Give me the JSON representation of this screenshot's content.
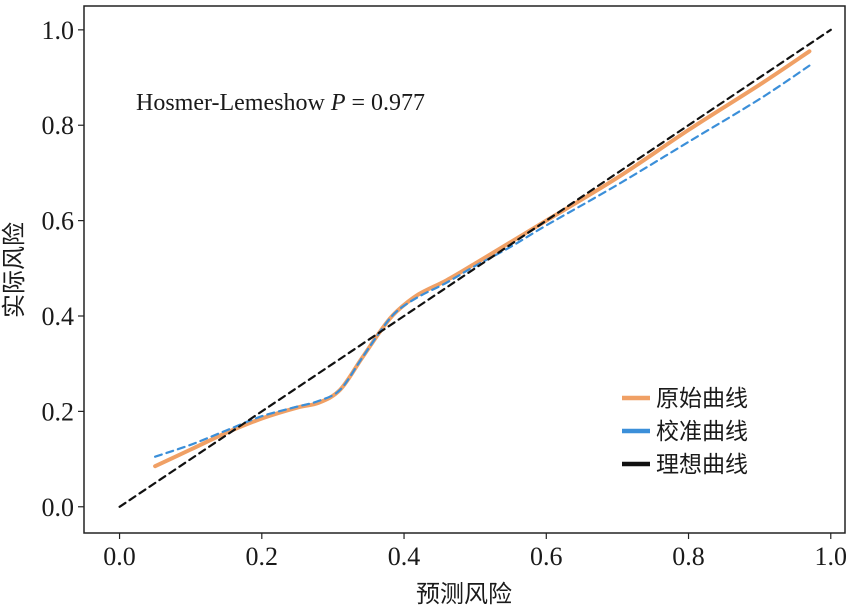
{
  "chart_data": {
    "type": "line",
    "xlabel": "预测风险",
    "ylabel": "实际风险",
    "xlim": [
      -0.05,
      1.02
    ],
    "ylim": [
      -0.055,
      1.05
    ],
    "xticks": [
      "0.0",
      "0.2",
      "0.4",
      "0.6",
      "0.8",
      "1.0"
    ],
    "yticks": [
      "0.0",
      "0.2",
      "0.4",
      "0.6",
      "0.8",
      "1.0"
    ],
    "xtick_values": [
      0,
      0.2,
      0.4,
      0.6,
      0.8,
      1.0
    ],
    "ytick_values": [
      0,
      0.2,
      0.4,
      0.6,
      0.8,
      1.0
    ],
    "grid": false,
    "legend_position": "bottom-right",
    "annotation": {
      "prefix": "Hosmer-Lemeshow ",
      "italic": "P",
      "suffix": " = 0.977"
    },
    "series": [
      {
        "name": "原始曲线",
        "color": "#f0a065",
        "style": "solid",
        "x": [
          0.05,
          0.1,
          0.15,
          0.2,
          0.25,
          0.28,
          0.31,
          0.34,
          0.37,
          0.39,
          0.42,
          0.46,
          0.5,
          0.55,
          0.6,
          0.7,
          0.8,
          0.9,
          0.97
        ],
        "y": [
          0.085,
          0.12,
          0.155,
          0.185,
          0.208,
          0.218,
          0.245,
          0.31,
          0.375,
          0.41,
          0.445,
          0.475,
          0.51,
          0.555,
          0.6,
          0.69,
          0.79,
          0.885,
          0.955
        ]
      },
      {
        "name": "校准曲线",
        "color": "#3b8fd9",
        "style": "dashed",
        "x": [
          0.05,
          0.1,
          0.15,
          0.2,
          0.25,
          0.28,
          0.31,
          0.34,
          0.37,
          0.39,
          0.42,
          0.46,
          0.5,
          0.55,
          0.6,
          0.7,
          0.8,
          0.9,
          0.97
        ],
        "y": [
          0.105,
          0.13,
          0.16,
          0.19,
          0.21,
          0.222,
          0.245,
          0.31,
          0.375,
          0.41,
          0.44,
          0.47,
          0.505,
          0.545,
          0.59,
          0.675,
          0.765,
          0.855,
          0.925
        ]
      },
      {
        "name": "理想曲线",
        "color": "#111111",
        "style": "dashed",
        "x": [
          0.0,
          1.0
        ],
        "y": [
          0.0,
          1.0
        ]
      }
    ]
  }
}
